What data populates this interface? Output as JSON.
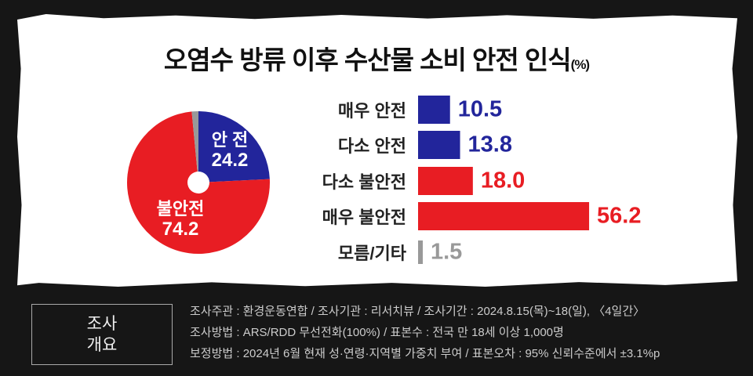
{
  "chart_data": [
    {
      "type": "pie",
      "title": "오염수 방류 이후 수산물 소비 안전 인식",
      "unit": "(%)",
      "slices": [
        {
          "label": "안 전",
          "value": 24.2,
          "color": "#22259b"
        },
        {
          "label": "불안전",
          "value": 74.2,
          "color": "#e81d23"
        },
        {
          "label": "",
          "value": 1.5,
          "color": "#999999"
        }
      ]
    },
    {
      "type": "bar",
      "orientation": "horizontal",
      "categories": [
        "매우 안전",
        "다소 안전",
        "다소 불안전",
        "매우 불안전",
        "모름/기타"
      ],
      "values": [
        10.5,
        13.8,
        18.0,
        56.2,
        1.5
      ],
      "labels": [
        "10.5",
        "13.8",
        "18.0",
        "56.2",
        "1.5"
      ],
      "colors": [
        "#22259b",
        "#22259b",
        "#e81d23",
        "#e81d23",
        "#999999"
      ]
    }
  ],
  "survey": {
    "box_label_1": "조사",
    "box_label_2": "개요",
    "lines": [
      "조사주관 : 환경운동연합 / 조사기관 : 리서치뷰 / 조사기간 : 2024.8.15(목)~18(일), 〈4일간〉",
      "조사방법 : ARS/RDD 무선전화(100%) / 표본수 : 전국 만 18세 이상 1,000명",
      "보정방법 : 2024년 6월 현재 성·연령·지역별 가중치 부여 / 표본오차 : 95% 신뢰수준에서 ±3.1%p"
    ]
  }
}
